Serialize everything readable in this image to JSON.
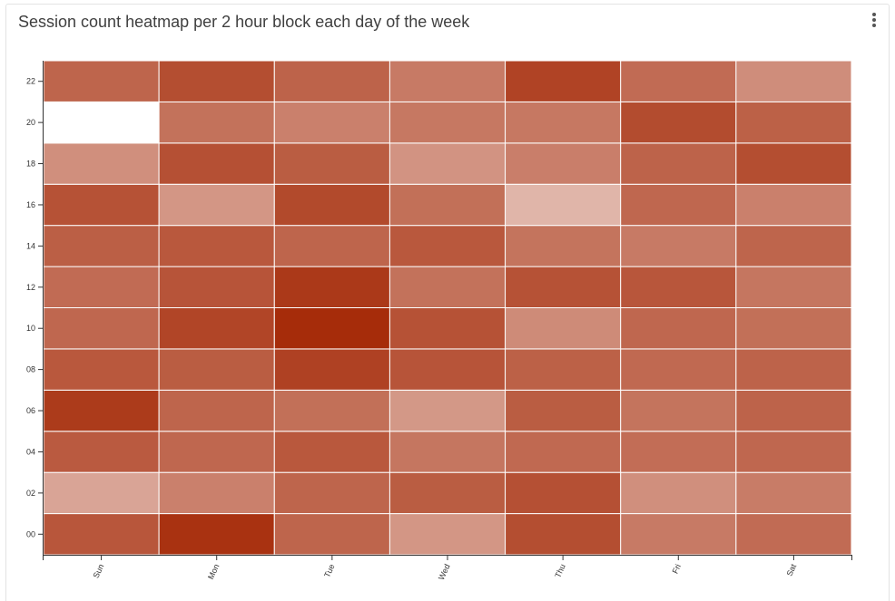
{
  "card": {
    "title": "Session count heatmap per 2 hour block each day of the week",
    "menu_icon": "vertical-ellipsis-icon"
  },
  "chart_data": {
    "type": "heatmap",
    "title": "Session count heatmap per 2 hour block each day of the week",
    "x": [
      "Sun",
      "Mon",
      "Tue",
      "Wed",
      "Thu",
      "Fri",
      "Sat"
    ],
    "y": [
      "00",
      "02",
      "04",
      "06",
      "08",
      "10",
      "12",
      "14",
      "16",
      "18",
      "20",
      "22"
    ],
    "y_tick_labels": [
      "00",
      "02",
      "04",
      "06",
      "08",
      "10",
      "12",
      "14",
      "16",
      "18",
      "20",
      "22"
    ],
    "color_min": "#ffffff",
    "color_max": "#a62c0a",
    "values": [
      [
        0.8,
        0.97,
        0.73,
        0.5,
        0.84,
        0.63,
        0.7
      ],
      [
        0.43,
        0.6,
        0.73,
        0.77,
        0.83,
        0.53,
        0.62
      ],
      [
        0.78,
        0.72,
        0.79,
        0.65,
        0.71,
        0.69,
        0.72
      ],
      [
        0.93,
        0.73,
        0.68,
        0.49,
        0.77,
        0.66,
        0.74
      ],
      [
        0.79,
        0.77,
        0.9,
        0.81,
        0.75,
        0.71,
        0.74
      ],
      [
        0.72,
        0.88,
        1.0,
        0.82,
        0.55,
        0.72,
        0.68
      ],
      [
        0.7,
        0.81,
        0.94,
        0.67,
        0.82,
        0.8,
        0.65
      ],
      [
        0.76,
        0.79,
        0.73,
        0.79,
        0.66,
        0.63,
        0.73
      ],
      [
        0.82,
        0.5,
        0.86,
        0.68,
        0.35,
        0.72,
        0.6
      ],
      [
        0.53,
        0.83,
        0.77,
        0.51,
        0.61,
        0.74,
        0.84
      ],
      [
        0.0,
        0.67,
        0.6,
        0.64,
        0.64,
        0.85,
        0.75
      ],
      [
        0.73,
        0.84,
        0.74,
        0.63,
        0.89,
        0.7,
        0.54
      ]
    ]
  }
}
